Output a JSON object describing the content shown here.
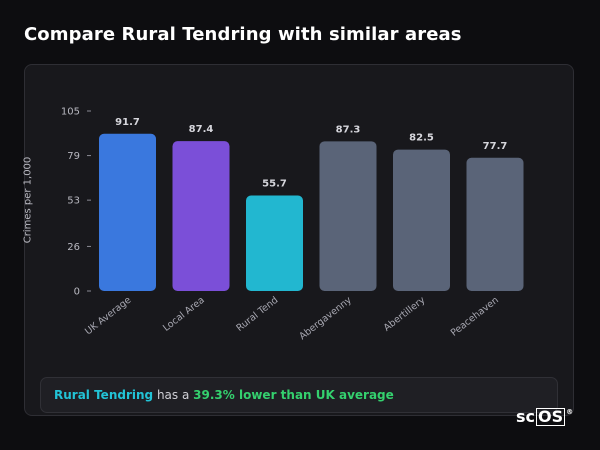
{
  "page": {
    "title": "Compare Rural Tendring with similar areas"
  },
  "summary": {
    "area_name": "Rural Tendring",
    "connector": "has a",
    "comparison": "39.3% lower than UK average"
  },
  "logo": {
    "prefix": "sc",
    "boxed": "OS",
    "mark": "®"
  },
  "colors": {
    "uk_average": "#3a78de",
    "local_area": "#7b4fd8",
    "selected_area": "#22b7d0",
    "similar_area": "#5a6478",
    "background": "#0d0d10",
    "card": "#18181c"
  },
  "chart_data": {
    "type": "bar",
    "title": "",
    "xlabel": "",
    "ylabel": "Crimes per 1,000",
    "ylim": [
      0,
      105
    ],
    "yticks": [
      0,
      26,
      53,
      79,
      105
    ],
    "categories": [
      "UK Average",
      "Local Area",
      "Rural Tend",
      "Abergavenny",
      "Abertillery",
      "Peacehaven"
    ],
    "values": [
      91.7,
      87.4,
      55.7,
      87.3,
      82.5,
      77.7
    ],
    "value_labels": [
      "91.7",
      "87.4",
      "55.7",
      "87.3",
      "82.5",
      "77.7"
    ],
    "bar_colors": [
      "#3a78de",
      "#7b4fd8",
      "#22b7d0",
      "#5a6478",
      "#5a6478",
      "#5a6478"
    ],
    "grid": false,
    "legend": "none"
  }
}
